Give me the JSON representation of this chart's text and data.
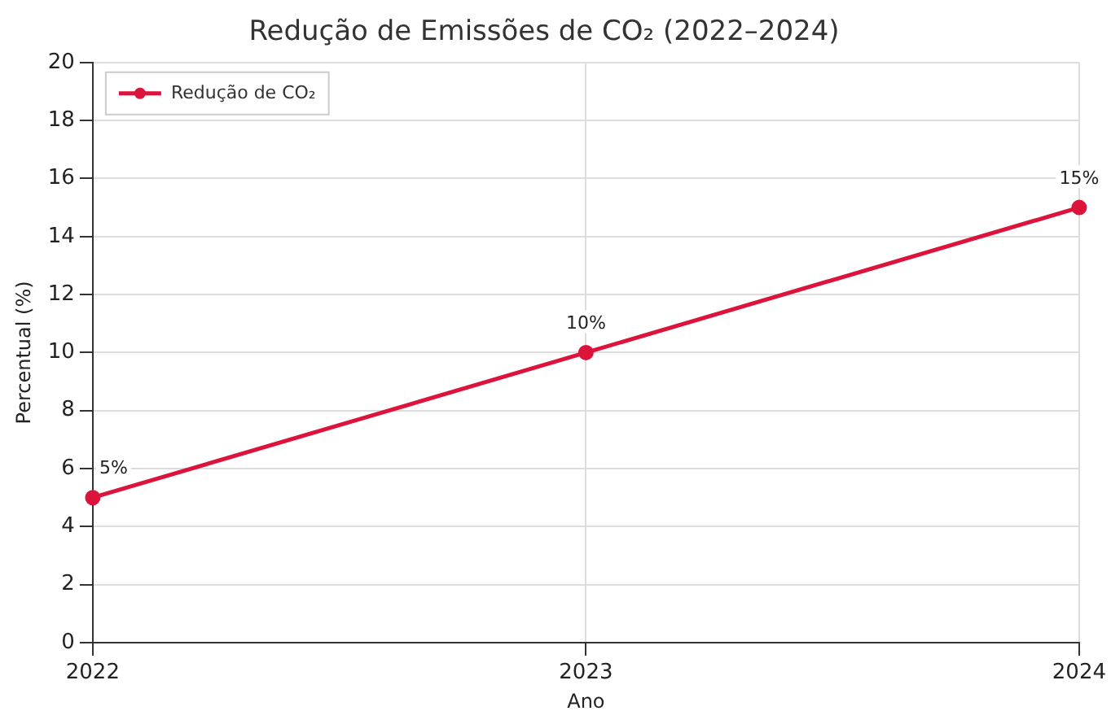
{
  "chart_data": {
    "type": "line",
    "title": "Redução de Emissões de CO₂ (2022–2024)",
    "xlabel": "Ano",
    "ylabel": "Percentual (%)",
    "categories": [
      "2022",
      "2023",
      "2024"
    ],
    "series": [
      {
        "name": "Redução de CO₂",
        "color": "#dc143c",
        "values": [
          5,
          10,
          15
        ],
        "value_labels": [
          "5%",
          "10%",
          "15%"
        ]
      }
    ],
    "ylim": [
      0,
      20
    ],
    "yticks": [
      0,
      2,
      4,
      6,
      8,
      10,
      12,
      14,
      16,
      18,
      20
    ],
    "grid": true,
    "legend": "top left",
    "marker": "circle",
    "line_style": "solid"
  }
}
